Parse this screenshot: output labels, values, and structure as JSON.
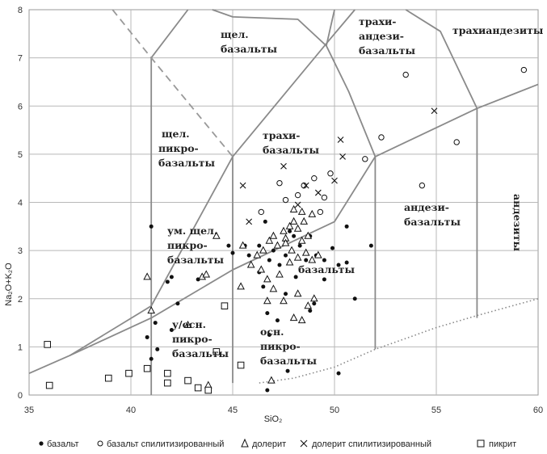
{
  "chart_data": {
    "type": "scatter",
    "title": "",
    "xlabel": "SiO₂",
    "ylabel": "Na₂O+K₂O",
    "xlim": [
      35,
      60
    ],
    "ylim": [
      0,
      8
    ],
    "x_ticks": [
      35,
      40,
      45,
      50,
      55,
      60
    ],
    "y_ticks": [
      0,
      1,
      2,
      3,
      4,
      5,
      6,
      7,
      8
    ],
    "grid": true,
    "legend_position": "bottom",
    "boundary_lines": [
      {
        "style": "solid",
        "points": [
          [
            35.0,
            0.45
          ],
          [
            37.0,
            0.82
          ],
          [
            41.0,
            1.6
          ],
          [
            45.0,
            2.6
          ],
          [
            50.0,
            3.6
          ],
          [
            52.0,
            4.95
          ],
          [
            57.0,
            5.95
          ],
          [
            60.0,
            6.45
          ]
        ]
      },
      {
        "style": "solid",
        "points": [
          [
            37.0,
            0.82
          ],
          [
            41.0,
            1.85
          ],
          [
            45.0,
            4.95
          ],
          [
            49.8,
            7.4
          ],
          [
            51.0,
            8.0
          ]
        ]
      },
      {
        "style": "solid",
        "points": [
          [
            41.0,
            0.0
          ],
          [
            41.0,
            7.0
          ],
          [
            42.8,
            8.0
          ]
        ]
      },
      {
        "style": "solid",
        "points": [
          [
            45.0,
            0.25
          ],
          [
            45.0,
            4.95
          ]
        ]
      },
      {
        "style": "solid",
        "points": [
          [
            52.0,
            0.95
          ],
          [
            52.0,
            4.95
          ]
        ]
      },
      {
        "style": "solid",
        "points": [
          [
            57.0,
            1.6
          ],
          [
            57.0,
            5.95
          ]
        ]
      },
      {
        "style": "solid",
        "points": [
          [
            44.0,
            8.0
          ],
          [
            45.0,
            7.85
          ],
          [
            48.2,
            7.8
          ],
          [
            49.6,
            7.25
          ],
          [
            50.0,
            8.0
          ]
        ]
      },
      {
        "style": "solid",
        "points": [
          [
            49.6,
            7.25
          ],
          [
            50.7,
            6.3
          ],
          [
            52.0,
            4.95
          ]
        ]
      },
      {
        "style": "solid",
        "points": [
          [
            53.5,
            8.0
          ],
          [
            55.2,
            7.55
          ],
          [
            57.0,
            5.95
          ]
        ]
      },
      {
        "style": "dashed",
        "points": [
          [
            39.1,
            8.0
          ],
          [
            41.0,
            7.0
          ],
          [
            45.0,
            4.95
          ]
        ]
      },
      {
        "style": "dotted",
        "points": [
          [
            46.3,
            0.25
          ],
          [
            48.0,
            0.35
          ],
          [
            50.0,
            0.58
          ],
          [
            52.0,
            0.95
          ],
          [
            55.0,
            1.4
          ],
          [
            57.0,
            1.65
          ],
          [
            60.0,
            2.0
          ]
        ]
      }
    ],
    "region_labels": [
      "щел.",
      "базальты",
      "трахи-",
      "андези-",
      "базальты",
      "трахиандезиты",
      "щел.",
      "пикро-",
      "базальты",
      "трахи-",
      "базальты",
      "ум. щел.",
      "пикро-",
      "базальты",
      "базальты",
      "андези-",
      "базальты",
      "андезиты",
      "у/осн.",
      "пикро-",
      "базальты",
      "осн.",
      "пикро-",
      "базальты"
    ],
    "series": [
      {
        "name": "базальт",
        "marker": "filled-circle",
        "points": [
          [
            41.0,
            3.5
          ],
          [
            40.8,
            1.2
          ],
          [
            41.0,
            0.75
          ],
          [
            41.3,
            0.95
          ],
          [
            41.2,
            1.5
          ],
          [
            41.8,
            2.35
          ],
          [
            42.0,
            2.45
          ],
          [
            42.3,
            1.9
          ],
          [
            42.0,
            1.35
          ],
          [
            43.3,
            2.4
          ],
          [
            44.2,
            3.3
          ],
          [
            44.8,
            3.1
          ],
          [
            45.0,
            2.95
          ],
          [
            45.6,
            3.1
          ],
          [
            45.8,
            2.9
          ],
          [
            46.3,
            3.1
          ],
          [
            46.6,
            3.6
          ],
          [
            46.8,
            2.8
          ],
          [
            47.0,
            3.0
          ],
          [
            47.3,
            2.7
          ],
          [
            47.6,
            3.2
          ],
          [
            47.6,
            2.9
          ],
          [
            47.8,
            3.4
          ],
          [
            48.0,
            3.3
          ],
          [
            48.3,
            3.1
          ],
          [
            48.6,
            2.8
          ],
          [
            48.8,
            3.3
          ],
          [
            49.1,
            2.9
          ],
          [
            49.5,
            2.8
          ],
          [
            49.9,
            3.05
          ],
          [
            50.2,
            2.7
          ],
          [
            50.6,
            3.5
          ],
          [
            50.6,
            2.75
          ],
          [
            51.0,
            2.0
          ],
          [
            51.8,
            3.1
          ],
          [
            46.3,
            2.55
          ],
          [
            46.5,
            2.25
          ],
          [
            46.7,
            1.7
          ],
          [
            46.8,
            1.25
          ],
          [
            47.2,
            1.55
          ],
          [
            47.6,
            2.1
          ],
          [
            48.1,
            2.45
          ],
          [
            48.8,
            1.75
          ],
          [
            49.0,
            1.9
          ],
          [
            49.5,
            2.4
          ],
          [
            47.7,
            0.5
          ],
          [
            46.7,
            0.1
          ],
          [
            50.2,
            0.45
          ]
        ]
      },
      {
        "name": "базальт спилитизированный",
        "marker": "open-circle",
        "points": [
          [
            47.3,
            4.4
          ],
          [
            47.6,
            4.05
          ],
          [
            48.2,
            4.15
          ],
          [
            48.5,
            4.35
          ],
          [
            49.0,
            4.5
          ],
          [
            49.8,
            4.6
          ],
          [
            49.5,
            4.1
          ],
          [
            49.3,
            3.8
          ],
          [
            51.5,
            4.9
          ],
          [
            52.3,
            5.35
          ],
          [
            53.5,
            6.65
          ],
          [
            54.3,
            4.35
          ],
          [
            56.0,
            5.25
          ],
          [
            59.3,
            6.75
          ],
          [
            46.4,
            3.8
          ]
        ]
      },
      {
        "name": "долерит",
        "marker": "open-triangle",
        "points": [
          [
            40.8,
            2.45
          ],
          [
            41.0,
            1.75
          ],
          [
            42.8,
            1.45
          ],
          [
            43.5,
            2.45
          ],
          [
            43.7,
            2.5
          ],
          [
            44.2,
            3.3
          ],
          [
            45.4,
            2.25
          ],
          [
            45.5,
            3.1
          ],
          [
            45.9,
            2.7
          ],
          [
            46.2,
            2.9
          ],
          [
            46.5,
            3.0
          ],
          [
            46.8,
            3.2
          ],
          [
            47.0,
            3.3
          ],
          [
            47.2,
            3.1
          ],
          [
            47.5,
            3.4
          ],
          [
            47.8,
            3.5
          ],
          [
            47.6,
            3.25
          ],
          [
            48.0,
            3.6
          ],
          [
            48.2,
            3.45
          ],
          [
            48.4,
            3.2
          ],
          [
            48.5,
            3.6
          ],
          [
            48.7,
            3.3
          ],
          [
            48.4,
            3.8
          ],
          [
            48.0,
            3.85
          ],
          [
            48.9,
            3.75
          ],
          [
            47.6,
            3.15
          ],
          [
            47.9,
            3.0
          ],
          [
            48.2,
            2.85
          ],
          [
            48.6,
            2.95
          ],
          [
            48.9,
            2.8
          ],
          [
            49.2,
            2.9
          ],
          [
            46.4,
            2.6
          ],
          [
            46.7,
            2.4
          ],
          [
            47.0,
            2.2
          ],
          [
            47.3,
            2.5
          ],
          [
            47.8,
            2.75
          ],
          [
            47.5,
            1.95
          ],
          [
            48.0,
            1.6
          ],
          [
            48.4,
            1.55
          ],
          [
            48.7,
            1.85
          ],
          [
            49.0,
            2.0
          ],
          [
            48.2,
            2.1
          ],
          [
            46.7,
            1.95
          ],
          [
            46.9,
            0.3
          ],
          [
            43.8,
            0.2
          ]
        ]
      },
      {
        "name": "долерит спилитизированный",
        "marker": "cross",
        "points": [
          [
            45.5,
            4.35
          ],
          [
            45.8,
            3.6
          ],
          [
            47.5,
            4.75
          ],
          [
            48.2,
            3.95
          ],
          [
            48.6,
            4.35
          ],
          [
            49.2,
            4.2
          ],
          [
            50.3,
            5.3
          ],
          [
            50.4,
            4.95
          ],
          [
            50.0,
            4.45
          ],
          [
            54.9,
            5.9
          ]
        ]
      },
      {
        "name": "пикрит",
        "marker": "open-square",
        "points": [
          [
            35.9,
            1.05
          ],
          [
            36.0,
            0.2
          ],
          [
            38.9,
            0.35
          ],
          [
            39.9,
            0.45
          ],
          [
            40.8,
            0.55
          ],
          [
            41.8,
            0.45
          ],
          [
            41.8,
            0.25
          ],
          [
            42.8,
            0.3
          ],
          [
            43.3,
            0.15
          ],
          [
            43.8,
            0.1
          ],
          [
            44.2,
            0.9
          ],
          [
            44.6,
            1.85
          ],
          [
            45.4,
            0.62
          ]
        ]
      }
    ]
  }
}
